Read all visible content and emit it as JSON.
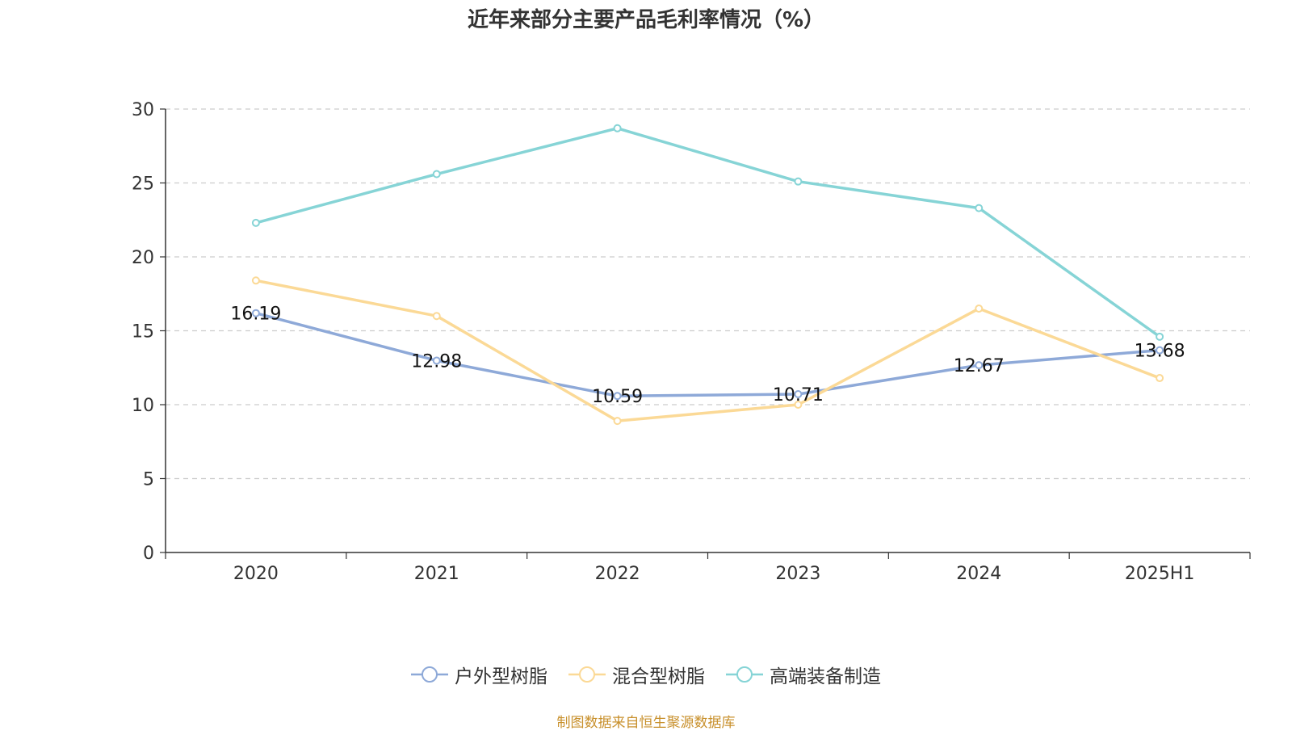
{
  "chart_data": {
    "type": "line",
    "title": "近年来部分主要产品毛利率情况（%）",
    "categories": [
      "2020",
      "2021",
      "2022",
      "2023",
      "2024",
      "2025H1"
    ],
    "ylim": [
      0,
      30
    ],
    "yticks": [
      0,
      5,
      10,
      15,
      20,
      25,
      30
    ],
    "grid": true,
    "legend_position": "bottom-center",
    "series": [
      {
        "name": "户外型树脂",
        "color": "#8ea9d8",
        "values": [
          16.19,
          12.98,
          10.59,
          10.71,
          12.67,
          13.68
        ],
        "labels": [
          "16.19",
          "12.98",
          "10.59",
          "10.71",
          "12.67",
          "13.68"
        ]
      },
      {
        "name": "混合型树脂",
        "color": "#fbd996",
        "values": [
          18.4,
          16.0,
          8.9,
          10.0,
          16.5,
          11.8
        ]
      },
      {
        "name": "高端装备制造",
        "color": "#86d4d6",
        "values": [
          22.3,
          25.6,
          28.7,
          25.1,
          23.3,
          14.6
        ]
      }
    ]
  },
  "source_note": "制图数据来自恒生聚源数据库"
}
